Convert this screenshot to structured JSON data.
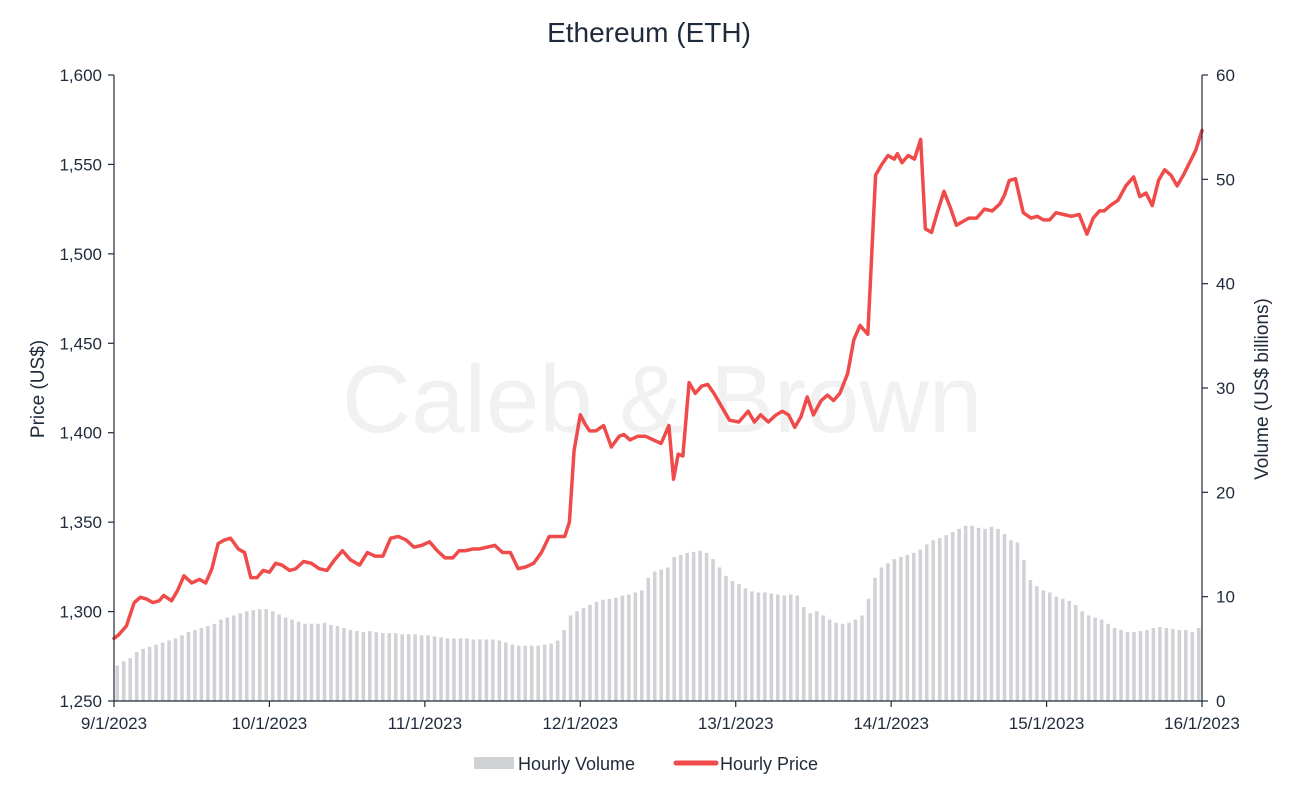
{
  "chart_data": {
    "type": "bar+line",
    "title": "Ethereum (ETH)",
    "watermark": "Caleb & Brown",
    "ylabel_left": "Price (US$)",
    "ylabel_right": "Volume (US$ billions)",
    "ylim_left": [
      1250,
      1600
    ],
    "yticks_left": [
      "1,250",
      "1,300",
      "1,350",
      "1,400",
      "1,450",
      "1,500",
      "1,550",
      "1,600"
    ],
    "ylim_right": [
      0,
      60
    ],
    "yticks_right": [
      "0",
      "10",
      "20",
      "30",
      "40",
      "50",
      "60"
    ],
    "x_range_days": [
      0,
      7
    ],
    "xticks": [
      "9/1/2023",
      "10/1/2023",
      "11/1/2023",
      "12/1/2023",
      "13/1/2023",
      "14/1/2023",
      "15/1/2023",
      "16/1/2023"
    ],
    "legend_position": "bottom-center",
    "colors": {
      "volume": "#d0d2d6",
      "price": "#f04b4b",
      "text": "#1f2a3a",
      "axis": "#1f2a3a"
    },
    "series": [
      {
        "name": "Hourly Volume",
        "kind": "bar",
        "axis": "right",
        "values": [
          3.4,
          3.8,
          4.1,
          4.7,
          5.0,
          5.2,
          5.4,
          5.6,
          5.8,
          6.0,
          6.3,
          6.6,
          6.8,
          7.0,
          7.2,
          7.4,
          7.8,
          8.0,
          8.2,
          8.4,
          8.6,
          8.7,
          8.8,
          8.8,
          8.6,
          8.3,
          8.0,
          7.8,
          7.6,
          7.4,
          7.4,
          7.4,
          7.5,
          7.3,
          7.2,
          7.0,
          6.8,
          6.7,
          6.6,
          6.7,
          6.6,
          6.5,
          6.5,
          6.5,
          6.4,
          6.4,
          6.4,
          6.3,
          6.3,
          6.2,
          6.1,
          6.0,
          6.0,
          6.0,
          6.0,
          5.9,
          5.9,
          5.9,
          5.9,
          5.8,
          5.6,
          5.4,
          5.3,
          5.3,
          5.3,
          5.3,
          5.4,
          5.5,
          5.8,
          6.8,
          8.2,
          8.6,
          8.9,
          9.2,
          9.5,
          9.7,
          9.8,
          9.9,
          10.1,
          10.2,
          10.4,
          10.6,
          11.8,
          12.4,
          12.6,
          12.8,
          13.8,
          14.0,
          14.2,
          14.3,
          14.4,
          14.2,
          13.6,
          12.8,
          12.0,
          11.5,
          11.2,
          10.8,
          10.5,
          10.4,
          10.4,
          10.3,
          10.2,
          10.1,
          10.2,
          10.1,
          9.0,
          8.4,
          8.6,
          8.2,
          7.8,
          7.5,
          7.4,
          7.5,
          7.8,
          8.2,
          9.8,
          11.8,
          12.8,
          13.2,
          13.6,
          13.8,
          14.0,
          14.2,
          14.5,
          15.0,
          15.4,
          15.6,
          15.9,
          16.2,
          16.5,
          16.8,
          16.8,
          16.6,
          16.5,
          16.7,
          16.5,
          16.0,
          15.4,
          15.2,
          13.5,
          11.6,
          11.0,
          10.6,
          10.4,
          10.0,
          9.8,
          9.6,
          9.2,
          8.6,
          8.2,
          8.0,
          7.8,
          7.4,
          7.0,
          6.8,
          6.6,
          6.6,
          6.7,
          6.8,
          7.0,
          7.1,
          7.0,
          6.9,
          6.8,
          6.8,
          6.6,
          7.0
        ]
      },
      {
        "name": "Hourly Price",
        "kind": "line",
        "axis": "left",
        "x": [
          0,
          0.03,
          0.08,
          0.13,
          0.17,
          0.21,
          0.25,
          0.29,
          0.32,
          0.37,
          0.41,
          0.45,
          0.5,
          0.55,
          0.59,
          0.63,
          0.67,
          0.71,
          0.75,
          0.8,
          0.84,
          0.88,
          0.92,
          0.96,
          1.0,
          1.04,
          1.08,
          1.13,
          1.17,
          1.22,
          1.27,
          1.32,
          1.37,
          1.42,
          1.47,
          1.52,
          1.58,
          1.63,
          1.68,
          1.73,
          1.78,
          1.83,
          1.88,
          1.93,
          1.98,
          2.03,
          2.08,
          2.13,
          2.18,
          2.22,
          2.26,
          2.31,
          2.35,
          2.4,
          2.45,
          2.5,
          2.55,
          2.6,
          2.65,
          2.7,
          2.75,
          2.8,
          2.85,
          2.9,
          2.93,
          2.96,
          3.0,
          3.03,
          3.06,
          3.1,
          3.15,
          3.2,
          3.25,
          3.28,
          3.32,
          3.37,
          3.42,
          3.47,
          3.52,
          3.57,
          3.6,
          3.63,
          3.66,
          3.7,
          3.74,
          3.78,
          3.82,
          3.86,
          3.9,
          3.96,
          4.02,
          4.08,
          4.12,
          4.16,
          4.21,
          4.26,
          4.3,
          4.34,
          4.38,
          4.42,
          4.46,
          4.5,
          4.55,
          4.59,
          4.63,
          4.67,
          4.72,
          4.76,
          4.8,
          4.85,
          4.9,
          4.94,
          4.98,
          5.02,
          5.04,
          5.07,
          5.11,
          5.15,
          5.19,
          5.22,
          5.26,
          5.3,
          5.34,
          5.38,
          5.42,
          5.46,
          5.5,
          5.55,
          5.6,
          5.65,
          5.7,
          5.73,
          5.76,
          5.8,
          5.85,
          5.9,
          5.94,
          5.98,
          6.02,
          6.06,
          6.11,
          6.16,
          6.21,
          6.26,
          6.3,
          6.34,
          6.37,
          6.41,
          6.46,
          6.51,
          6.56,
          6.6,
          6.64,
          6.68,
          6.72,
          6.76,
          6.8,
          6.84,
          6.88,
          6.92,
          6.96,
          7.0
        ],
        "values": [
          1285,
          1287,
          1292,
          1305,
          1308,
          1307,
          1305,
          1306,
          1309,
          1306,
          1312,
          1320,
          1316,
          1318,
          1316,
          1324,
          1338,
          1340,
          1341,
          1335,
          1333,
          1319,
          1319,
          1323,
          1322,
          1327,
          1326,
          1323,
          1324,
          1328,
          1327,
          1324,
          1323,
          1329,
          1334,
          1329,
          1326,
          1333,
          1331,
          1331,
          1341,
          1342,
          1340,
          1336,
          1337,
          1339,
          1334,
          1330,
          1330,
          1334,
          1334,
          1335,
          1335,
          1336,
          1337,
          1333,
          1333,
          1324,
          1325,
          1327,
          1333,
          1342,
          1342,
          1342,
          1350,
          1390,
          1410,
          1405,
          1401,
          1401,
          1404,
          1392,
          1398,
          1399,
          1396,
          1398,
          1398,
          1396,
          1394,
          1404,
          1374,
          1388,
          1387,
          1428,
          1422,
          1426,
          1427,
          1422,
          1416,
          1407,
          1406,
          1412,
          1406,
          1410,
          1406,
          1410,
          1412,
          1410,
          1403,
          1409,
          1420,
          1410,
          1418,
          1421,
          1418,
          1422,
          1433,
          1452,
          1460,
          1455,
          1544,
          1550,
          1555,
          1553,
          1556,
          1551,
          1555,
          1553,
          1564,
          1514,
          1512,
          1524,
          1535,
          1526,
          1516,
          1518,
          1520,
          1520,
          1525,
          1524,
          1528,
          1533,
          1541,
          1542,
          1523,
          1520,
          1521,
          1519,
          1519,
          1523,
          1522,
          1521,
          1522,
          1511,
          1520,
          1524,
          1524,
          1527,
          1530,
          1538,
          1543,
          1532,
          1534,
          1527,
          1541,
          1547,
          1544,
          1538,
          1544,
          1551,
          1558,
          1569
        ]
      }
    ]
  }
}
